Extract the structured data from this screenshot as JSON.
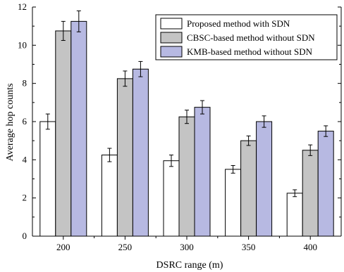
{
  "chart_data": {
    "type": "bar",
    "title": "",
    "xlabel": "DSRC range (m)",
    "ylabel": "Average hop counts",
    "categories": [
      "200",
      "250",
      "300",
      "350",
      "400"
    ],
    "ylim": [
      0,
      12
    ],
    "yticks": [
      "0",
      "2",
      "4",
      "6",
      "8",
      "10",
      "12"
    ],
    "grid": false,
    "legend_position": "top-right",
    "error_bars": true,
    "series": [
      {
        "name": "Proposed method with SDN",
        "color": "#ffffff",
        "values": [
          6.0,
          4.25,
          3.95,
          3.5,
          2.25
        ],
        "errors": [
          0.4,
          0.35,
          0.3,
          0.2,
          0.18
        ]
      },
      {
        "name": "CBSC-based method without SDN",
        "color": "#c4c4c4",
        "values": [
          10.75,
          8.25,
          6.25,
          5.0,
          4.5
        ],
        "errors": [
          0.5,
          0.4,
          0.35,
          0.25,
          0.28
        ]
      },
      {
        "name": "KMB-based method without SDN",
        "color": "#b7b9e2",
        "values": [
          11.25,
          8.75,
          6.75,
          6.0,
          5.5
        ],
        "errors": [
          0.55,
          0.4,
          0.35,
          0.3,
          0.28
        ]
      }
    ]
  }
}
